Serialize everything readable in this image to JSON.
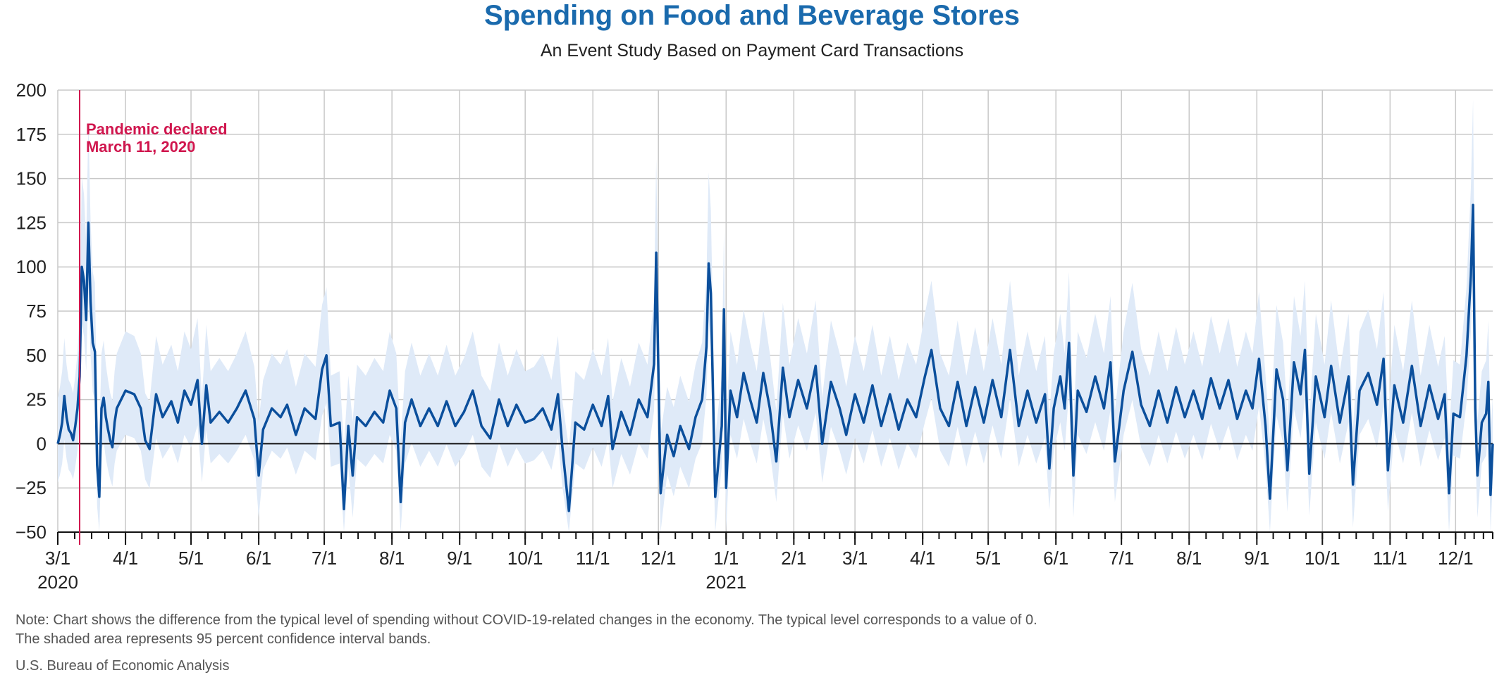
{
  "header": {
    "title": "Spending on Food and Beverage Stores",
    "subtitle": "An Event Study Based on Payment Card Transactions"
  },
  "footer": {
    "note_line1": "Note: Chart shows the difference from the typical level of spending without COVID-19-related changes in the economy. The typical level corresponds to a value of 0.",
    "note_line2": "The shaded area represents 95 percent confidence interval bands.",
    "source": "U.S. Bureau of Economic Analysis"
  },
  "colors": {
    "line": "#0b4f9c",
    "band": "#dfeaf8",
    "event": "#d0164e",
    "grid": "#c8c8c8",
    "zero": "#111111"
  },
  "chart_data": {
    "type": "line",
    "title": "Spending on Food and Beverage Stores",
    "subtitle": "An Event Study Based on Payment Card Transactions",
    "x_start": "2020-03-01",
    "x_end": "2021-12-18",
    "ylim": [
      -50,
      200
    ],
    "yticks": [
      -50,
      -25,
      0,
      25,
      50,
      75,
      100,
      125,
      150,
      175,
      200
    ],
    "x_ticks": [
      {
        "date": "2020-03-01",
        "label": "3/1",
        "year": "2020"
      },
      {
        "date": "2020-04-01",
        "label": "4/1",
        "year": ""
      },
      {
        "date": "2020-05-01",
        "label": "5/1",
        "year": ""
      },
      {
        "date": "2020-06-01",
        "label": "6/1",
        "year": ""
      },
      {
        "date": "2020-07-01",
        "label": "7/1",
        "year": ""
      },
      {
        "date": "2020-08-01",
        "label": "8/1",
        "year": ""
      },
      {
        "date": "2020-09-01",
        "label": "9/1",
        "year": ""
      },
      {
        "date": "2020-10-01",
        "label": "10/1",
        "year": ""
      },
      {
        "date": "2020-11-01",
        "label": "11/1",
        "year": ""
      },
      {
        "date": "2020-12-01",
        "label": "12/1",
        "year": ""
      },
      {
        "date": "2021-01-01",
        "label": "1/1",
        "year": "2021"
      },
      {
        "date": "2021-02-01",
        "label": "2/1",
        "year": ""
      },
      {
        "date": "2021-03-01",
        "label": "3/1",
        "year": ""
      },
      {
        "date": "2021-04-01",
        "label": "4/1",
        "year": ""
      },
      {
        "date": "2021-05-01",
        "label": "5/1",
        "year": ""
      },
      {
        "date": "2021-06-01",
        "label": "6/1",
        "year": ""
      },
      {
        "date": "2021-07-01",
        "label": "7/1",
        "year": ""
      },
      {
        "date": "2021-08-01",
        "label": "8/1",
        "year": ""
      },
      {
        "date": "2021-09-01",
        "label": "9/1",
        "year": ""
      },
      {
        "date": "2021-10-01",
        "label": "10/1",
        "year": ""
      },
      {
        "date": "2021-11-01",
        "label": "11/1",
        "year": ""
      },
      {
        "date": "2021-12-01",
        "label": "12/1",
        "year": ""
      }
    ],
    "event": {
      "date": "2020-03-11",
      "label_line1": "Pandemic declared",
      "label_line2": "March 11, 2020"
    },
    "grid": true,
    "series": [
      {
        "points": [
          [
            "2020-03-01",
            0
          ],
          [
            "2020-03-02",
            5
          ],
          [
            "2020-03-03",
            12
          ],
          [
            "2020-03-04",
            27
          ],
          [
            "2020-03-05",
            15
          ],
          [
            "2020-03-06",
            8
          ],
          [
            "2020-03-07",
            6
          ],
          [
            "2020-03-08",
            2
          ],
          [
            "2020-03-09",
            10
          ],
          [
            "2020-03-10",
            20
          ],
          [
            "2020-03-11",
            38
          ],
          [
            "2020-03-12",
            100
          ],
          [
            "2020-03-13",
            92
          ],
          [
            "2020-03-14",
            70
          ],
          [
            "2020-03-15",
            125
          ],
          [
            "2020-03-16",
            80
          ],
          [
            "2020-03-17",
            57
          ],
          [
            "2020-03-18",
            52
          ],
          [
            "2020-03-19",
            -12
          ],
          [
            "2020-03-20",
            -30
          ],
          [
            "2020-03-21",
            20
          ],
          [
            "2020-03-22",
            26
          ],
          [
            "2020-03-23",
            15
          ],
          [
            "2020-03-24",
            8
          ],
          [
            "2020-03-25",
            2
          ],
          [
            "2020-03-26",
            -2
          ],
          [
            "2020-03-27",
            12
          ],
          [
            "2020-03-28",
            20
          ],
          [
            "2020-04-01",
            30
          ],
          [
            "2020-04-05",
            28
          ],
          [
            "2020-04-08",
            20
          ],
          [
            "2020-04-10",
            2
          ],
          [
            "2020-04-12",
            -3
          ],
          [
            "2020-04-15",
            28
          ],
          [
            "2020-04-18",
            15
          ],
          [
            "2020-04-22",
            24
          ],
          [
            "2020-04-25",
            12
          ],
          [
            "2020-04-28",
            30
          ],
          [
            "2020-05-01",
            22
          ],
          [
            "2020-05-04",
            36
          ],
          [
            "2020-05-06",
            0
          ],
          [
            "2020-05-08",
            33
          ],
          [
            "2020-05-10",
            12
          ],
          [
            "2020-05-14",
            18
          ],
          [
            "2020-05-18",
            12
          ],
          [
            "2020-05-22",
            20
          ],
          [
            "2020-05-26",
            30
          ],
          [
            "2020-05-30",
            14
          ],
          [
            "2020-06-01",
            -18
          ],
          [
            "2020-06-03",
            8
          ],
          [
            "2020-06-07",
            20
          ],
          [
            "2020-06-11",
            15
          ],
          [
            "2020-06-14",
            22
          ],
          [
            "2020-06-18",
            5
          ],
          [
            "2020-06-22",
            20
          ],
          [
            "2020-06-27",
            14
          ],
          [
            "2020-06-30",
            42
          ],
          [
            "2020-07-02",
            50
          ],
          [
            "2020-07-04",
            10
          ],
          [
            "2020-07-08",
            12
          ],
          [
            "2020-07-10",
            -37
          ],
          [
            "2020-07-12",
            10
          ],
          [
            "2020-07-14",
            -18
          ],
          [
            "2020-07-16",
            15
          ],
          [
            "2020-07-20",
            10
          ],
          [
            "2020-07-24",
            18
          ],
          [
            "2020-07-28",
            12
          ],
          [
            "2020-07-31",
            30
          ],
          [
            "2020-08-03",
            20
          ],
          [
            "2020-08-05",
            -33
          ],
          [
            "2020-08-07",
            12
          ],
          [
            "2020-08-10",
            25
          ],
          [
            "2020-08-14",
            10
          ],
          [
            "2020-08-18",
            20
          ],
          [
            "2020-08-22",
            10
          ],
          [
            "2020-08-26",
            24
          ],
          [
            "2020-08-30",
            10
          ],
          [
            "2020-09-03",
            18
          ],
          [
            "2020-09-07",
            30
          ],
          [
            "2020-09-11",
            10
          ],
          [
            "2020-09-15",
            3
          ],
          [
            "2020-09-19",
            25
          ],
          [
            "2020-09-23",
            10
          ],
          [
            "2020-09-27",
            22
          ],
          [
            "2020-10-01",
            12
          ],
          [
            "2020-10-05",
            14
          ],
          [
            "2020-10-09",
            20
          ],
          [
            "2020-10-13",
            8
          ],
          [
            "2020-10-16",
            28
          ],
          [
            "2020-10-18",
            -2
          ],
          [
            "2020-10-21",
            -38
          ],
          [
            "2020-10-24",
            12
          ],
          [
            "2020-10-28",
            8
          ],
          [
            "2020-11-01",
            22
          ],
          [
            "2020-11-05",
            10
          ],
          [
            "2020-11-08",
            27
          ],
          [
            "2020-11-10",
            -3
          ],
          [
            "2020-11-14",
            18
          ],
          [
            "2020-11-18",
            5
          ],
          [
            "2020-11-22",
            25
          ],
          [
            "2020-11-26",
            15
          ],
          [
            "2020-11-29",
            45
          ],
          [
            "2020-11-30",
            108
          ],
          [
            "2020-12-02",
            -28
          ],
          [
            "2020-12-05",
            5
          ],
          [
            "2020-12-08",
            -7
          ],
          [
            "2020-12-11",
            10
          ],
          [
            "2020-12-15",
            -3
          ],
          [
            "2020-12-18",
            15
          ],
          [
            "2020-12-21",
            25
          ],
          [
            "2020-12-23",
            55
          ],
          [
            "2020-12-24",
            102
          ],
          [
            "2020-12-25",
            85
          ],
          [
            "2020-12-27",
            -30
          ],
          [
            "2020-12-30",
            10
          ],
          [
            "2020-12-31",
            76
          ],
          [
            "2021-01-01",
            -25
          ],
          [
            "2021-01-03",
            30
          ],
          [
            "2021-01-06",
            15
          ],
          [
            "2021-01-09",
            40
          ],
          [
            "2021-01-12",
            25
          ],
          [
            "2021-01-15",
            12
          ],
          [
            "2021-01-18",
            40
          ],
          [
            "2021-01-21",
            20
          ],
          [
            "2021-01-24",
            -10
          ],
          [
            "2021-01-27",
            43
          ],
          [
            "2021-01-30",
            15
          ],
          [
            "2021-02-03",
            36
          ],
          [
            "2021-02-07",
            20
          ],
          [
            "2021-02-11",
            44
          ],
          [
            "2021-02-14",
            0
          ],
          [
            "2021-02-18",
            35
          ],
          [
            "2021-02-22",
            20
          ],
          [
            "2021-02-25",
            5
          ],
          [
            "2021-03-01",
            28
          ],
          [
            "2021-03-05",
            12
          ],
          [
            "2021-03-09",
            33
          ],
          [
            "2021-03-13",
            10
          ],
          [
            "2021-03-17",
            28
          ],
          [
            "2021-03-21",
            8
          ],
          [
            "2021-03-25",
            25
          ],
          [
            "2021-03-29",
            15
          ],
          [
            "2021-04-02",
            38
          ],
          [
            "2021-04-05",
            53
          ],
          [
            "2021-04-09",
            20
          ],
          [
            "2021-04-13",
            10
          ],
          [
            "2021-04-17",
            35
          ],
          [
            "2021-04-21",
            10
          ],
          [
            "2021-04-25",
            32
          ],
          [
            "2021-04-29",
            12
          ],
          [
            "2021-05-03",
            36
          ],
          [
            "2021-05-07",
            15
          ],
          [
            "2021-05-11",
            53
          ],
          [
            "2021-05-15",
            10
          ],
          [
            "2021-05-19",
            30
          ],
          [
            "2021-05-23",
            12
          ],
          [
            "2021-05-27",
            28
          ],
          [
            "2021-05-29",
            -14
          ],
          [
            "2021-05-31",
            20
          ],
          [
            "2021-06-03",
            38
          ],
          [
            "2021-06-05",
            20
          ],
          [
            "2021-06-07",
            57
          ],
          [
            "2021-06-09",
            -18
          ],
          [
            "2021-06-11",
            30
          ],
          [
            "2021-06-15",
            18
          ],
          [
            "2021-06-19",
            38
          ],
          [
            "2021-06-23",
            20
          ],
          [
            "2021-06-26",
            46
          ],
          [
            "2021-06-28",
            -10
          ],
          [
            "2021-07-02",
            30
          ],
          [
            "2021-07-06",
            52
          ],
          [
            "2021-07-10",
            22
          ],
          [
            "2021-07-14",
            10
          ],
          [
            "2021-07-18",
            30
          ],
          [
            "2021-07-22",
            12
          ],
          [
            "2021-07-26",
            32
          ],
          [
            "2021-07-30",
            15
          ],
          [
            "2021-08-03",
            30
          ],
          [
            "2021-08-07",
            14
          ],
          [
            "2021-08-11",
            37
          ],
          [
            "2021-08-15",
            20
          ],
          [
            "2021-08-19",
            36
          ],
          [
            "2021-08-23",
            14
          ],
          [
            "2021-08-27",
            30
          ],
          [
            "2021-08-30",
            20
          ],
          [
            "2021-09-02",
            48
          ],
          [
            "2021-09-05",
            10
          ],
          [
            "2021-09-07",
            -31
          ],
          [
            "2021-09-10",
            42
          ],
          [
            "2021-09-13",
            25
          ],
          [
            "2021-09-15",
            -15
          ],
          [
            "2021-09-18",
            46
          ],
          [
            "2021-09-21",
            28
          ],
          [
            "2021-09-23",
            53
          ],
          [
            "2021-09-25",
            -17
          ],
          [
            "2021-09-28",
            38
          ],
          [
            "2021-10-02",
            15
          ],
          [
            "2021-10-05",
            44
          ],
          [
            "2021-10-09",
            12
          ],
          [
            "2021-10-13",
            38
          ],
          [
            "2021-10-15",
            -23
          ],
          [
            "2021-10-18",
            30
          ],
          [
            "2021-10-22",
            40
          ],
          [
            "2021-10-26",
            22
          ],
          [
            "2021-10-29",
            48
          ],
          [
            "2021-10-31",
            -15
          ],
          [
            "2021-11-03",
            33
          ],
          [
            "2021-11-07",
            12
          ],
          [
            "2021-11-11",
            44
          ],
          [
            "2021-11-15",
            10
          ],
          [
            "2021-11-19",
            33
          ],
          [
            "2021-11-23",
            14
          ],
          [
            "2021-11-26",
            28
          ],
          [
            "2021-11-28",
            -28
          ],
          [
            "2021-11-30",
            17
          ],
          [
            "2021-12-03",
            15
          ],
          [
            "2021-12-06",
            50
          ],
          [
            "2021-12-08",
            95
          ],
          [
            "2021-12-09",
            135
          ],
          [
            "2021-12-10",
            20
          ],
          [
            "2021-12-11",
            -18
          ],
          [
            "2021-12-13",
            12
          ],
          [
            "2021-12-15",
            17
          ],
          [
            "2021-12-16",
            35
          ],
          [
            "2021-12-17",
            -29
          ],
          [
            "2021-12-18",
            0
          ]
        ]
      }
    ]
  }
}
